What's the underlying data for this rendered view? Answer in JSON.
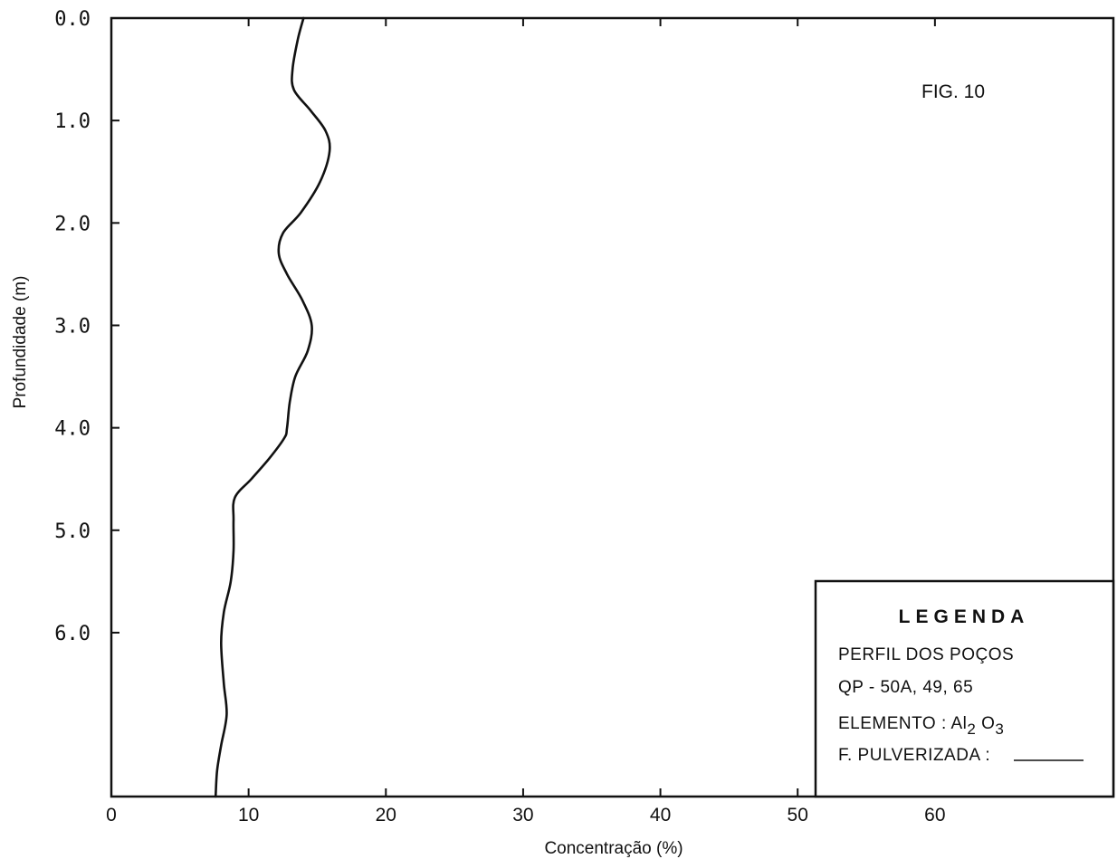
{
  "chart_data": {
    "type": "line",
    "figure_label": "FIG. 10",
    "xlabel": "Concentração (%)",
    "ylabel": "Profundidade (m)",
    "xlim": [
      0,
      73
    ],
    "ylim": [
      0,
      7.6
    ],
    "y_inverted": true,
    "x_ticks": [
      0,
      10,
      20,
      30,
      40,
      50,
      60
    ],
    "x_tick_labels": [
      "0",
      "10",
      "20",
      "30",
      "40",
      "50",
      "60"
    ],
    "y_ticks": [
      0,
      1,
      2,
      3,
      4,
      5,
      6
    ],
    "y_tick_labels": [
      "0.0",
      "1.0",
      "2.0",
      "3.0",
      "4.0",
      "5.0",
      "6.0"
    ],
    "grid": false,
    "legend": {
      "placement": "bottom-right",
      "title": "LEGENDA",
      "line1": "PERFIL DOS POÇOS",
      "line2": "QP - 50A, 49, 65",
      "element_prefix": "ELEMENTO : Al",
      "element_sub1": "2",
      "element_mid": " O",
      "element_sub2": "3",
      "line4": "F. PULVERIZADA :"
    },
    "series": [
      {
        "x": [
          14.0,
          13.6,
          13.2,
          13.3,
          14.5,
          15.6,
          15.9,
          15.2,
          13.8,
          12.5,
          12.2,
          12.8,
          13.9,
          14.6,
          14.3,
          13.4,
          13.0,
          12.8,
          12.6,
          11.5,
          10.2,
          9.0,
          8.9,
          8.9,
          8.7,
          8.2,
          8.0,
          8.2,
          8.4,
          8.0,
          7.7,
          7.6
        ],
        "y": [
          0.0,
          0.2,
          0.5,
          0.7,
          0.9,
          1.1,
          1.3,
          1.6,
          1.9,
          2.1,
          2.3,
          2.5,
          2.75,
          3.0,
          3.25,
          3.5,
          3.75,
          4.0,
          4.1,
          4.3,
          4.5,
          4.68,
          4.9,
          5.2,
          5.5,
          5.8,
          6.1,
          6.5,
          6.8,
          7.1,
          7.35,
          7.6
        ],
        "color": "#111111"
      }
    ]
  }
}
